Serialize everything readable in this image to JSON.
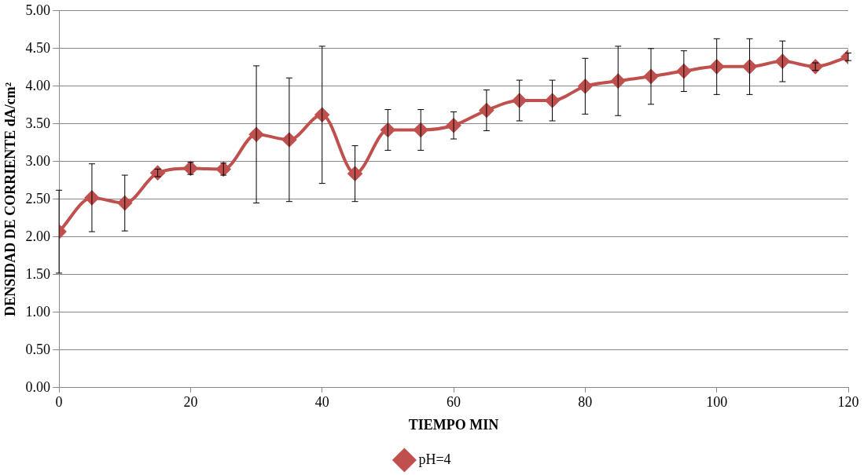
{
  "chart_data": {
    "type": "line",
    "xlabel": "TIEMPO MIN",
    "ylabel": "DENSIDAD DE CORRIENTE dA/cm²",
    "x": [
      0,
      5,
      10,
      15,
      20,
      25,
      30,
      35,
      40,
      45,
      50,
      55,
      60,
      65,
      70,
      75,
      80,
      85,
      90,
      95,
      100,
      105,
      110,
      115,
      120
    ],
    "series": [
      {
        "name": "pH=4",
        "color": "#c0504d",
        "values": [
          2.07,
          2.52,
          2.45,
          2.85,
          2.91,
          2.9,
          3.36,
          3.29,
          3.62,
          2.84,
          3.42,
          3.42,
          3.48,
          3.68,
          3.81,
          3.81,
          4.0,
          4.07,
          4.13,
          4.2,
          4.26,
          4.26,
          4.33,
          4.26,
          4.39
        ],
        "errors": [
          0.55,
          0.45,
          0.37,
          0.05,
          0.08,
          0.08,
          0.91,
          0.82,
          0.91,
          0.37,
          0.27,
          0.27,
          0.18,
          0.27,
          0.27,
          0.27,
          0.37,
          0.46,
          0.37,
          0.27,
          0.37,
          0.37,
          0.27,
          0.05,
          0.05
        ]
      }
    ],
    "xlim": [
      0,
      120
    ],
    "xticks": [
      0,
      20,
      40,
      60,
      80,
      100,
      120
    ],
    "ylim": [
      0,
      5
    ],
    "yticks": [
      {
        "value": 0,
        "label": "0.00"
      },
      {
        "value": 0.5,
        "label": "0.50"
      },
      {
        "value": 1,
        "label": "1.00"
      },
      {
        "value": 1.5,
        "label": "1.50"
      },
      {
        "value": 2,
        "label": "2.00"
      },
      {
        "value": 2.5,
        "label": "2.50"
      },
      {
        "value": 3,
        "label": "3.00"
      },
      {
        "value": 3.5,
        "label": "3.50"
      },
      {
        "value": 4,
        "label": "4.00"
      },
      {
        "value": 4.5,
        "label": "4.50"
      },
      {
        "value": 5,
        "label": "5.00"
      }
    ],
    "grid": "y",
    "legend": "bottom",
    "marker": "diamond",
    "line_style": "solid"
  }
}
